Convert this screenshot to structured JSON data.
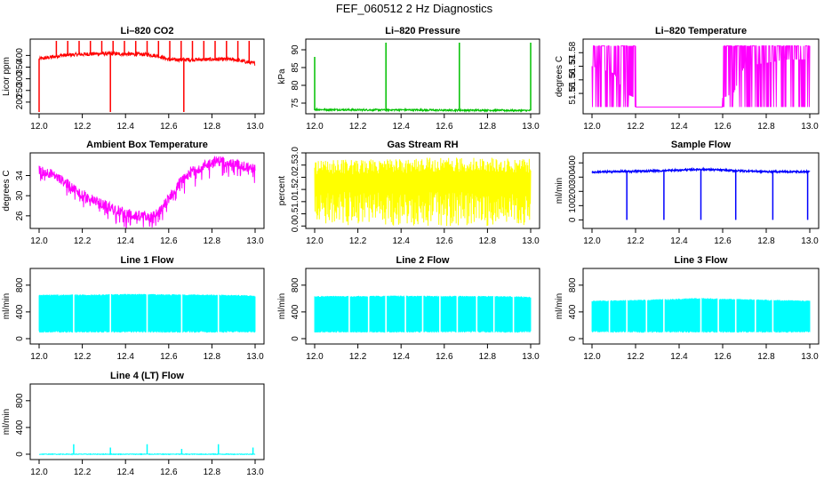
{
  "figure_title": "FEF_060512  2 Hz Diagnostics",
  "chart_data": [
    {
      "id": "co2",
      "type": "line",
      "title": "Li–820 CO2",
      "ylabel": "Licor ppm",
      "color": "#ff0000",
      "xlim": [
        12.0,
        13.0
      ],
      "ylim": [
        150,
        470
      ],
      "yticks": [
        "200",
        "250",
        "300",
        "350",
        "400"
      ],
      "xticks": [
        "12.0",
        "12.2",
        "12.4",
        "12.6",
        "12.8",
        "13.0"
      ],
      "series": {
        "x": [
          12.0,
          12.05,
          12.1,
          12.2,
          12.3,
          12.4,
          12.5,
          12.55,
          12.6,
          12.7,
          12.8,
          12.9,
          13.0
        ],
        "y": [
          385,
          392,
          400,
          405,
          408,
          406,
          404,
          398,
          382,
          382,
          383,
          383,
          365
        ]
      }
    },
    {
      "id": "pressure",
      "type": "line",
      "title": "Li–820 Pressure",
      "ylabel": "kPa",
      "color": "#00c000",
      "xlim": [
        12.0,
        13.0
      ],
      "ylim": [
        72,
        93
      ],
      "yticks": [
        "75",
        "80",
        "85",
        "90"
      ],
      "xticks": [
        "12.0",
        "12.2",
        "12.4",
        "12.6",
        "12.8",
        "13.0"
      ],
      "series": {
        "x": [
          12.0,
          12.2,
          12.4,
          12.6,
          12.8,
          13.0
        ],
        "y": [
          73.2,
          73.1,
          73.1,
          73.0,
          73.0,
          72.9
        ]
      }
    },
    {
      "id": "licor_temp",
      "type": "line",
      "title": "Li–820 Temperature",
      "ylabel": "degrees C",
      "color": "#ff00ff",
      "xlim": [
        12.0,
        13.0
      ],
      "ylim": [
        51.535,
        51.59
      ],
      "yticks": [
        "51.55",
        "51.56",
        "51.57",
        "51.58"
      ],
      "xticks": [
        "12.0",
        "12.2",
        "12.4",
        "12.6",
        "12.8",
        "13.0"
      ],
      "series": {
        "x": [
          12.0,
          12.1,
          12.15,
          12.3,
          12.5,
          12.65,
          12.7,
          12.9,
          13.0
        ],
        "y": [
          51.57,
          51.565,
          51.55,
          51.54,
          51.54,
          51.55,
          51.57,
          51.575,
          51.575
        ]
      }
    },
    {
      "id": "box_temp",
      "type": "line",
      "title": "Ambient Box Temperature",
      "ylabel": "degrees C",
      "color": "#ff00ff",
      "xlim": [
        12.0,
        13.0
      ],
      "ylim": [
        23.5,
        38.5
      ],
      "yticks": [
        "26",
        "30",
        "34"
      ],
      "xticks": [
        "12.0",
        "12.2",
        "12.4",
        "12.6",
        "12.8",
        "13.0"
      ],
      "series": {
        "x": [
          12.0,
          12.05,
          12.1,
          12.2,
          12.3,
          12.4,
          12.45,
          12.5,
          12.55,
          12.6,
          12.65,
          12.7,
          12.8,
          12.85,
          12.9,
          13.0
        ],
        "y": [
          35,
          34.5,
          33.2,
          30.3,
          28.2,
          26.6,
          26.0,
          25.9,
          26.4,
          29.5,
          32.5,
          34.8,
          36.7,
          37.0,
          36.4,
          35.3
        ]
      }
    },
    {
      "id": "rh",
      "type": "line",
      "title": "Gas Stream RH",
      "ylabel": "percent",
      "color": "#ffff00",
      "xlim": [
        12.0,
        13.0
      ],
      "ylim": [
        -0.1,
        3.0
      ],
      "yticks": [
        "0.0",
        "0.5",
        "1.0",
        "1.5",
        "2.0",
        "2.5",
        "3.0"
      ],
      "xticks": [
        "12.0",
        "12.2",
        "12.4",
        "12.6",
        "12.8",
        "13.0"
      ],
      "series": {
        "x": [
          12.0,
          12.2,
          12.4,
          12.6,
          12.8,
          13.0
        ],
        "y": [
          2.3,
          2.3,
          2.35,
          2.4,
          2.4,
          2.35
        ]
      }
    },
    {
      "id": "sample_flow",
      "type": "line",
      "title": "Sample Flow",
      "ylabel": "ml/min",
      "color": "#0000ff",
      "xlim": [
        12.0,
        13.0
      ],
      "ylim": [
        -60,
        470
      ],
      "yticks": [
        "0",
        "100",
        "200",
        "300",
        "400"
      ],
      "xticks": [
        "12.0",
        "12.2",
        "12.4",
        "12.6",
        "12.8",
        "13.0"
      ],
      "series": {
        "x": [
          12.0,
          12.16,
          12.33,
          12.5,
          12.66,
          12.83,
          13.0
        ],
        "y": [
          335,
          340,
          345,
          355,
          345,
          338,
          338
        ]
      }
    },
    {
      "id": "line1",
      "type": "line",
      "title": "Line 1 Flow",
      "ylabel": "ml/min",
      "color": "#00ffff",
      "xlim": [
        12.0,
        13.0
      ],
      "ylim": [
        -80,
        1050
      ],
      "yticks": [
        "0",
        "400",
        "800"
      ],
      "xticks": [
        "12.0",
        "12.2",
        "12.4",
        "12.6",
        "12.8",
        "13.0"
      ],
      "series": {
        "x": [
          12.0,
          12.2,
          12.4,
          12.6,
          12.8,
          13.0
        ],
        "y": [
          650,
          650,
          660,
          655,
          650,
          640
        ]
      }
    },
    {
      "id": "line2",
      "type": "line",
      "title": "Line 2 Flow",
      "ylabel": "ml/min",
      "color": "#00ffff",
      "xlim": [
        12.0,
        13.0
      ],
      "ylim": [
        -80,
        1050
      ],
      "yticks": [
        "0",
        "400",
        "800"
      ],
      "xticks": [
        "12.0",
        "12.2",
        "12.4",
        "12.6",
        "12.8",
        "13.0"
      ],
      "series": {
        "x": [
          12.0,
          12.2,
          12.4,
          12.6,
          12.8,
          13.0
        ],
        "y": [
          630,
          630,
          635,
          630,
          630,
          620
        ]
      }
    },
    {
      "id": "line3",
      "type": "line",
      "title": "Line 3 Flow",
      "ylabel": "ml/min",
      "color": "#00ffff",
      "xlim": [
        12.0,
        13.0
      ],
      "ylim": [
        -80,
        1050
      ],
      "yticks": [
        "0",
        "400",
        "800"
      ],
      "xticks": [
        "12.0",
        "12.2",
        "12.4",
        "12.6",
        "12.8",
        "13.0"
      ],
      "series": {
        "x": [
          12.0,
          12.2,
          12.4,
          12.5,
          12.6,
          12.8,
          13.0
        ],
        "y": [
          560,
          570,
          590,
          600,
          590,
          575,
          560
        ]
      }
    },
    {
      "id": "line4",
      "type": "line",
      "title": "Line 4 (LT) Flow",
      "ylabel": "ml/min",
      "color": "#00ffff",
      "xlim": [
        12.0,
        13.0
      ],
      "ylim": [
        -80,
        1050
      ],
      "yticks": [
        "0",
        "400",
        "800"
      ],
      "xticks": [
        "12.0",
        "12.2",
        "12.4",
        "12.6",
        "12.8",
        "13.0"
      ],
      "series": {
        "x": [
          12.0,
          12.5,
          13.0
        ],
        "y": [
          0,
          0,
          0
        ]
      }
    }
  ]
}
